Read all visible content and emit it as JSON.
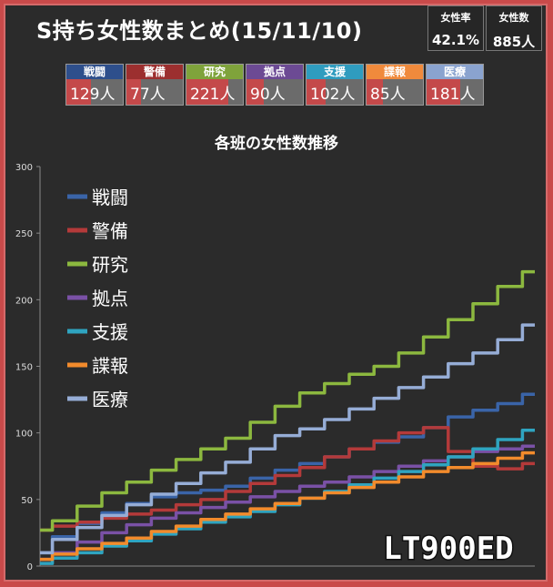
{
  "header": {
    "title": "S持ち女性数まとめ(15/11/10)",
    "ratio_label": "女性率",
    "ratio_value": "42.1%",
    "count_label": "女性数",
    "count_value": "885人"
  },
  "teams": [
    {
      "label": "戦闘",
      "count": "129人",
      "value": 129,
      "color": "#2e4f8c"
    },
    {
      "label": "警備",
      "count": "77人",
      "value": 77,
      "color": "#9c2f2f"
    },
    {
      "label": "研究",
      "count": "221人",
      "value": 221,
      "color": "#7fa33b"
    },
    {
      "label": "拠点",
      "count": "90人",
      "value": 90,
      "color": "#6c4a94"
    },
    {
      "label": "支援",
      "count": "102人",
      "value": 102,
      "color": "#2f9cbf"
    },
    {
      "label": "諜報",
      "count": "85人",
      "value": 85,
      "color": "#f08a3c"
    },
    {
      "label": "医療",
      "count": "181人",
      "value": 181,
      "color": "#8aa3cf"
    }
  ],
  "watermark": "LT900ED",
  "chart_data": {
    "type": "line",
    "title": "各班の女性数推移",
    "ylim": [
      0,
      300
    ],
    "yticks": [
      0,
      50,
      100,
      150,
      200,
      250,
      300
    ],
    "grid": false,
    "legend_position": "top-left",
    "x": [
      0,
      1,
      2,
      3,
      4,
      5,
      6,
      7,
      8,
      9,
      10,
      11,
      12,
      13,
      14,
      15,
      16,
      17,
      18,
      19,
      20
    ],
    "series": [
      {
        "name": "戦闘",
        "color": "#3a64a8",
        "values": [
          10,
          22,
          32,
          40,
          47,
          52,
          55,
          57,
          60,
          66,
          72,
          77,
          82,
          88,
          93,
          97,
          104,
          112,
          117,
          122,
          129
        ]
      },
      {
        "name": "警備",
        "color": "#b43a3a",
        "values": [
          27,
          30,
          33,
          36,
          39,
          42,
          46,
          50,
          56,
          62,
          68,
          74,
          82,
          88,
          94,
          100,
          104,
          86,
          75,
          73,
          77
        ]
      },
      {
        "name": "研究",
        "color": "#8cb83f",
        "values": [
          27,
          34,
          45,
          55,
          63,
          72,
          80,
          88,
          96,
          108,
          120,
          130,
          137,
          144,
          150,
          160,
          172,
          185,
          197,
          210,
          221
        ]
      },
      {
        "name": "拠点",
        "color": "#7a51a6",
        "values": [
          5,
          10,
          18,
          25,
          31,
          36,
          40,
          44,
          48,
          52,
          56,
          60,
          63,
          67,
          71,
          75,
          79,
          82,
          86,
          88,
          90
        ]
      },
      {
        "name": "支援",
        "color": "#2fa4c0",
        "values": [
          2,
          6,
          10,
          15,
          19,
          24,
          28,
          33,
          37,
          41,
          46,
          51,
          56,
          61,
          66,
          71,
          76,
          82,
          88,
          95,
          102
        ]
      },
      {
        "name": "諜報",
        "color": "#f28b2c",
        "values": [
          5,
          9,
          13,
          17,
          21,
          26,
          30,
          35,
          39,
          43,
          47,
          51,
          55,
          59,
          63,
          67,
          71,
          74,
          77,
          81,
          85
        ]
      },
      {
        "name": "医療",
        "color": "#96add6",
        "values": [
          10,
          20,
          29,
          38,
          46,
          54,
          62,
          70,
          78,
          88,
          98,
          103,
          110,
          118,
          126,
          134,
          142,
          152,
          160,
          170,
          181
        ]
      }
    ]
  }
}
